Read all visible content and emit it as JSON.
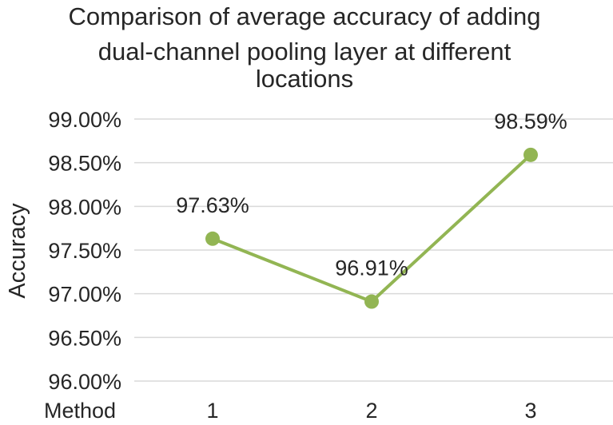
{
  "chart_data": {
    "type": "line",
    "title_lines": [
      "Comparison of average accuracy of adding",
      "dual-channel pooling layer at different",
      "locations"
    ],
    "ylabel": "Accuracy",
    "xlabel": "Method",
    "categories": [
      "1",
      "2",
      "3"
    ],
    "series": [
      {
        "values": [
          97.63,
          96.91,
          98.59
        ],
        "data_labels": [
          "97.63%",
          "96.91%",
          "98.59%"
        ],
        "color": "#92b553"
      }
    ],
    "ylim": [
      96.0,
      99.0
    ],
    "yticks": [
      96.0,
      96.5,
      97.0,
      97.5,
      98.0,
      98.5,
      99.0
    ],
    "ytick_labels": [
      "96.00%",
      "96.50%",
      "97.00%",
      "97.50%",
      "98.00%",
      "98.50%",
      "99.00%"
    ],
    "grid": true,
    "legend": "none"
  }
}
